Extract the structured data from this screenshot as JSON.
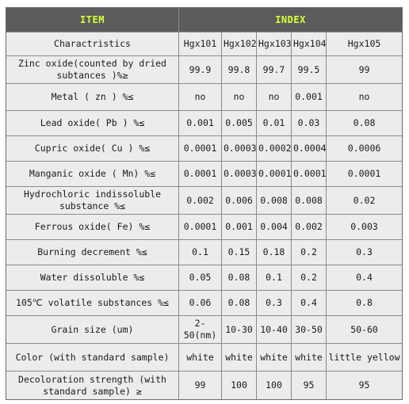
{
  "header": {
    "col1": "ITEM",
    "col2": "INDEX"
  },
  "columns": [
    "Charactristics",
    "Hgx101",
    "Hgx102",
    "Hgx103",
    "Hgx104",
    "Hgx105"
  ],
  "rows": [
    {
      "label": "Zinc oxide(counted by dried subtances )%≥",
      "values": [
        "99.9",
        "99.8",
        "99.7",
        "99.5",
        "99"
      ]
    },
    {
      "label": "Metal ( zn ) %≤",
      "values": [
        "no",
        "no",
        "no",
        "0.001",
        "no"
      ]
    },
    {
      "label": "Lead oxide( Pb ) %≤",
      "values": [
        "0.001",
        "0.005",
        "0.01",
        "0.03",
        "0.08"
      ]
    },
    {
      "label": "Cupric oxide( Cu ) %≤",
      "values": [
        "0.0001",
        "0.0003",
        "0.0002",
        "0.0004",
        "0.0006"
      ]
    },
    {
      "label": "Manganic oxide ( Mn) %≤",
      "values": [
        "0.0001",
        "0.0003",
        "0.0001",
        "0.0001",
        "0.0001"
      ]
    },
    {
      "label": "Hydrochloric indissoluble substance %≤",
      "values": [
        "0.002",
        "0.006",
        "0.008",
        "0.008",
        "0.02"
      ]
    },
    {
      "label": "Ferrous oxide( Fe) %≤",
      "values": [
        "0.0001",
        "0.001",
        "0.004",
        "0.002",
        "0.003"
      ]
    },
    {
      "label": "Burning decrement %≤",
      "values": [
        "0.1",
        "0.15",
        "0.18",
        "0.2",
        "0.3"
      ]
    },
    {
      "label": "Water dissoluble %≤",
      "values": [
        "0.05",
        "0.08",
        "0.1",
        "0.2",
        "0.4"
      ]
    },
    {
      "label": "105℃ volatile substances %≤",
      "values": [
        "0.06",
        "0.08",
        "0.3",
        "0.4",
        "0.8"
      ]
    },
    {
      "label": "Grain size (um)",
      "values": [
        "2-50(nm)",
        "10-30",
        "10-40",
        "30-50",
        "50-60"
      ]
    },
    {
      "label": "Color (with standard sample)",
      "values": [
        "white",
        "white",
        "white",
        "white",
        "little yellow"
      ]
    },
    {
      "label": "Decoloration strength (with standard sample) ≥",
      "values": [
        "99",
        "100",
        "100",
        "95",
        "95"
      ]
    }
  ]
}
